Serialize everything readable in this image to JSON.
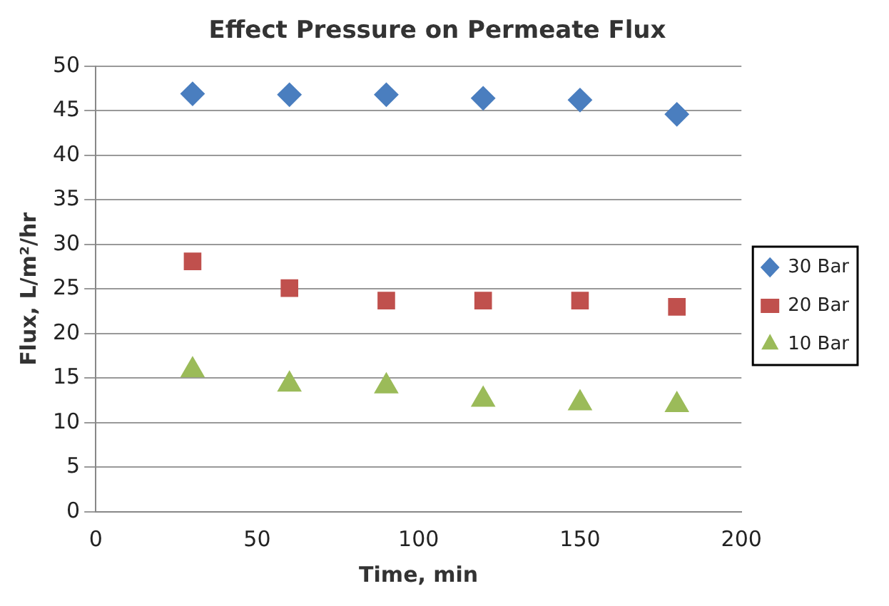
{
  "chart_data": {
    "type": "scatter",
    "title": "Effect Pressure on Permeate Flux",
    "xlabel": "Time, min",
    "ylabel": "Flux, L/m²/hr",
    "x": [
      30,
      60,
      90,
      120,
      150,
      180
    ],
    "series": [
      {
        "name": "30 Bar",
        "color": "#4a7ebf",
        "marker": "diamond",
        "values": [
          46.9,
          46.8,
          46.8,
          46.4,
          46.2,
          44.6
        ]
      },
      {
        "name": "20 Bar",
        "color": "#c0504d",
        "marker": "square",
        "values": [
          28.1,
          25.1,
          23.7,
          23.7,
          23.7,
          23.0
        ]
      },
      {
        "name": "10 Bar",
        "color": "#9bbb59",
        "marker": "triangle",
        "values": [
          15.9,
          14.3,
          14.1,
          12.6,
          12.2,
          12.0
        ]
      }
    ],
    "xlim": [
      0,
      200
    ],
    "xticks": [
      0,
      50,
      100,
      150,
      200
    ],
    "ylim": [
      0,
      50
    ],
    "yticks": [
      0,
      5,
      10,
      15,
      20,
      25,
      30,
      35,
      40,
      45,
      50
    ],
    "grid": "y",
    "legend": "right"
  }
}
